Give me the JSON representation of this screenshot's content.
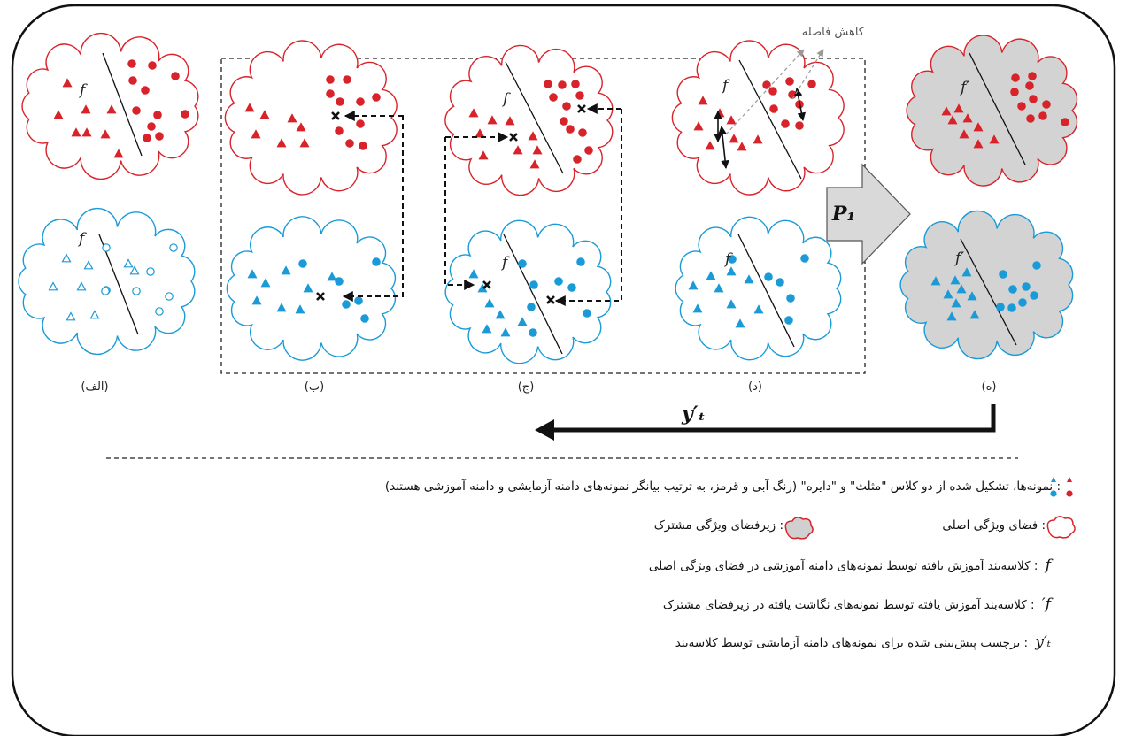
{
  "panels": {
    "a": "(الف)",
    "b": "(ب)",
    "c": "(ج)",
    "d": "(د)",
    "e": "(ه)"
  },
  "labels": {
    "f": "f",
    "f_prime": "f′",
    "reduce_distance": "کاهش فاصله",
    "p1": "P₁",
    "y_t": "y′ₜ"
  },
  "colors": {
    "source": "#d8232a",
    "target": "#1a9bd7",
    "shared_fill": "#d3d3d3"
  },
  "legend": {
    "samples": "نمونه‌ها، تشکیل شده از دو کلاس \"مثلث\" و \"دایره\" (رنگ آبی و قرمز، به ترتیب بیانگر نمونه‌های دامنه آزمایشی و دامنه آموزشی هستند)",
    "original_space": "فضای ویژگی اصلی",
    "shared_subspace": "زیرفضای ویژگی مشترک",
    "f_symbol": "f",
    "f_desc": "کلاسه‌بند آموزش یافته توسط نمونه‌های دامنه آموزشی در فضای ویژگی اصلی",
    "fp_symbol": "f′",
    "fp_desc": "کلاسه‌بند آموزش یافته توسط نمونه‌های نگاشت یافته در زیرفضای مشترک",
    "y_symbol": "y′ₜ",
    "y_desc": "برچسب پیش‌بینی شده برای نمونه‌های دامنه آزمایشی توسط کلاسه‌بند"
  }
}
